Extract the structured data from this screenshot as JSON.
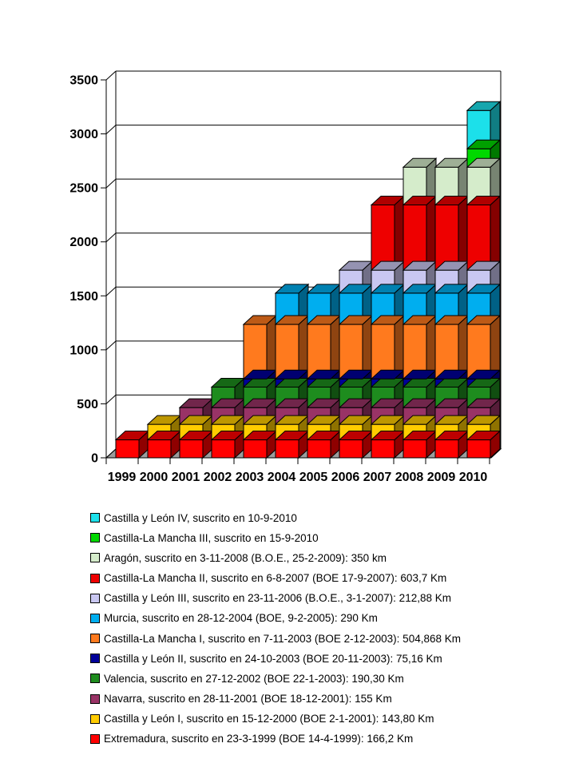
{
  "chart_data": {
    "type": "stacked-bar",
    "style": "3d-columns",
    "title": "",
    "xlabel": "",
    "ylabel": "",
    "unit": "Km",
    "categories": [
      "1999",
      "2000",
      "2001",
      "2002",
      "2003",
      "2004",
      "2005",
      "2006",
      "2007",
      "2008",
      "2009",
      "2010"
    ],
    "y_ticks": [
      0,
      500,
      1000,
      1500,
      2000,
      2500,
      3000,
      3500
    ],
    "ylim": [
      0,
      3500
    ],
    "grid": "horizontal",
    "legend_position": "bottom",
    "series": [
      {
        "name": "Extremadura",
        "from_year": 1999,
        "km": 166.2,
        "labeled_km": "166,2 Km",
        "color": "#FF0000"
      },
      {
        "name": "Castilla y León I",
        "from_year": 2000,
        "km": 143.8,
        "labeled_km": "143,80 Km",
        "color": "#FFCC00"
      },
      {
        "name": "Navarra",
        "from_year": 2001,
        "km": 155,
        "labeled_km": "155 Km",
        "color": "#993366"
      },
      {
        "name": "Valencia",
        "from_year": 2002,
        "km": 190.3,
        "labeled_km": "190,30 Km",
        "color": "#1E8C1E"
      },
      {
        "name": "Castilla y León II",
        "from_year": 2003,
        "km": 75.16,
        "labeled_km": "75,16 Km",
        "color": "#000099"
      },
      {
        "name": "Castilla-La Mancha I",
        "from_year": 2003,
        "km": 504.868,
        "labeled_km": "504,868 Km",
        "color": "#FF7A1E"
      },
      {
        "name": "Murcia",
        "from_year": 2004,
        "km": 290,
        "labeled_km": "290 Km",
        "color": "#00AEEF"
      },
      {
        "name": "Castilla y León III",
        "from_year": 2006,
        "km": 212.88,
        "labeled_km": "212,88 Km",
        "color": "#C9C7F1"
      },
      {
        "name": "Castilla-La Mancha II",
        "from_year": 2007,
        "km": 603.7,
        "labeled_km": "603,7 Km",
        "color": "#EE0000"
      },
      {
        "name": "Aragón",
        "from_year": 2008,
        "km": 350,
        "labeled_km": "350 km",
        "color": "#D5ECCB"
      },
      {
        "name": "Castilla-La Mancha III",
        "from_year": 2010,
        "km": 170,
        "labeled_km": "",
        "color": "#00D800"
      },
      {
        "name": "Castilla y León IV",
        "from_year": 2010,
        "km": 355,
        "labeled_km": "",
        "color": "#1CE0EA"
      }
    ],
    "totals_by_year": [
      166.2,
      310.0,
      465.0,
      655.3,
      1235.33,
      1525.33,
      1525.33,
      1738.21,
      2341.91,
      2691.91,
      2691.91,
      3216.91
    ]
  },
  "legend": {
    "items": [
      {
        "label": "Castilla y León IV, suscrito en 10-9-2010",
        "color": "#1CE0EA"
      },
      {
        "label": "Castilla-La Mancha III, suscrito en 15-9-2010",
        "color": "#00D800"
      },
      {
        "label": "Aragón, suscrito en 3-11-2008 (B.O.E., 25-2-2009): 350 km",
        "color": "#D5ECCB"
      },
      {
        "label": "Castilla-La Mancha II, suscrito en 6-8-2007 (BOE 17-9-2007): 603,7 Km",
        "color": "#EE0000"
      },
      {
        "label": "Castilla y León III, suscrito en 23-11-2006 (B.O.E., 3-1-2007): 212,88 Km",
        "color": "#C9C7F1"
      },
      {
        "label": "Murcia, suscrito en 28-12-2004 (BOE, 9-2-2005): 290 Km",
        "color": "#00AEEF"
      },
      {
        "label": "Castilla-La Mancha I, suscrito en 7-11-2003 (BOE 2-12-2003): 504,868 Km",
        "color": "#FF7A1E"
      },
      {
        "label": "Castilla y León II, suscrito en 24-10-2003 (BOE 20-11-2003): 75,16 Km",
        "color": "#000099"
      },
      {
        "label": "Valencia, suscrito en 27-12-2002 (BOE 22-1-2003): 190,30 Km",
        "color": "#1E8C1E"
      },
      {
        "label": "Navarra, suscrito en 28-11-2001 (BOE 18-12-2001): 155 Km",
        "color": "#993366"
      },
      {
        "label": "Castilla y León I, suscrito en 15-12-2000 (BOE 2-1-2001): 143,80 Km",
        "color": "#FFCC00"
      },
      {
        "label": "Extremadura, suscrito en 23-3-1999 (BOE 14-4-1999): 166,2 Km",
        "color": "#FF0000"
      }
    ]
  },
  "colors": {
    "floor": "#9C9C9C",
    "axis": "#000000",
    "text": "#000000",
    "background": "#FFFFFF"
  }
}
